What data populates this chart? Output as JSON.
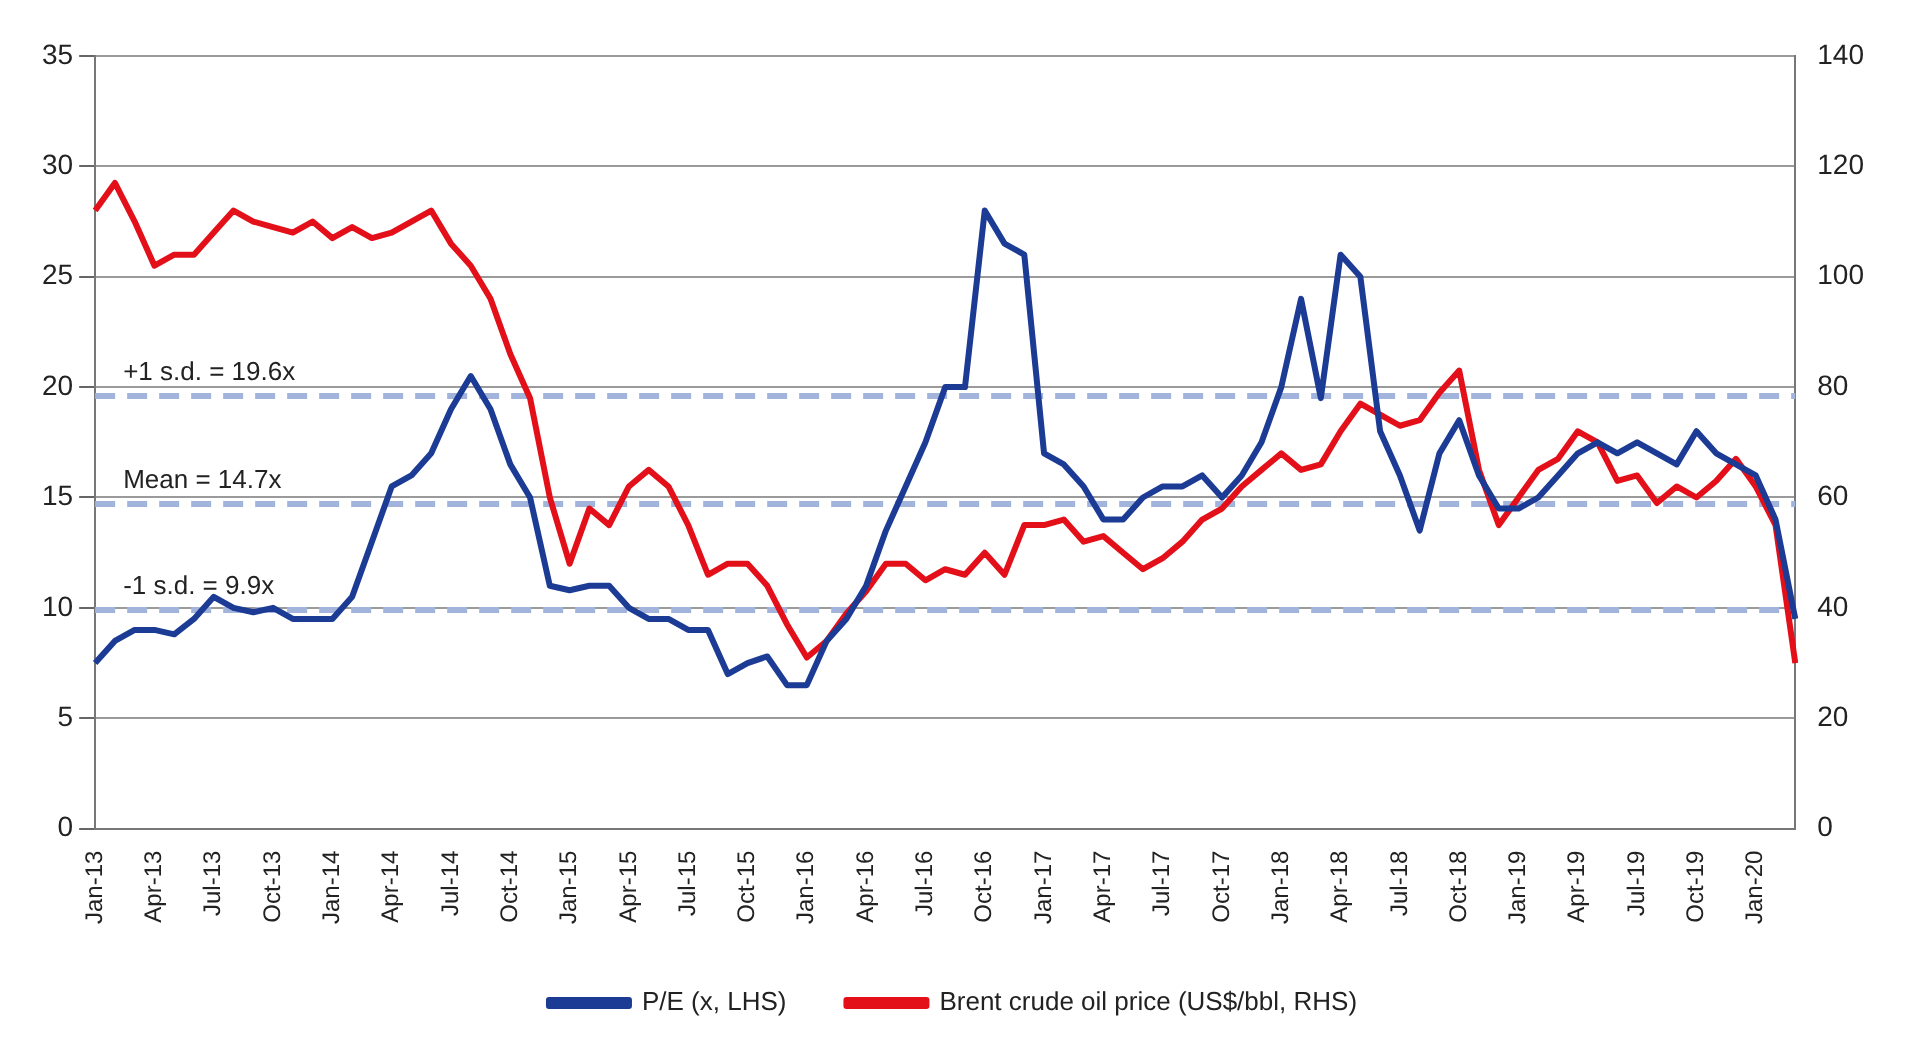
{
  "chart_data": {
    "type": "line",
    "categories": [
      "Jan-13",
      null,
      null,
      "Apr-13",
      null,
      null,
      "Jul-13",
      null,
      null,
      "Oct-13",
      null,
      null,
      "Jan-14",
      null,
      null,
      "Apr-14",
      null,
      null,
      "Jul-14",
      null,
      null,
      "Oct-14",
      null,
      null,
      "Jan-15",
      null,
      null,
      "Apr-15",
      null,
      null,
      "Jul-15",
      null,
      null,
      "Oct-15",
      null,
      null,
      "Jan-16",
      null,
      null,
      "Apr-16",
      null,
      null,
      "Jul-16",
      null,
      null,
      "Oct-16",
      null,
      null,
      "Jan-17",
      null,
      null,
      "Apr-17",
      null,
      null,
      "Jul-17",
      null,
      null,
      "Oct-17",
      null,
      null,
      "Jan-18",
      null,
      null,
      "Apr-18",
      null,
      null,
      "Jul-18",
      null,
      null,
      "Oct-18",
      null,
      null,
      "Jan-19",
      null,
      null,
      "Apr-19",
      null,
      null,
      "Jul-19",
      null,
      null,
      "Oct-19",
      null,
      null,
      "Jan-20",
      null,
      null
    ],
    "series": [
      {
        "name": "P/E (x, LHS)",
        "color": "#1b3b94",
        "values": [
          7.5,
          8.5,
          9,
          9,
          8.8,
          9.5,
          10.5,
          10,
          9.8,
          10,
          9.5,
          9.5,
          9.5,
          10.5,
          13,
          15.5,
          16,
          17,
          19,
          20.5,
          19,
          16.5,
          15,
          11,
          10.8,
          11,
          11,
          10,
          9.5,
          9.5,
          9,
          9,
          7,
          7.5,
          7.8,
          6.5,
          6.5,
          8.5,
          9.5,
          11,
          13.5,
          15.5,
          17.5,
          20,
          20,
          28,
          26.5,
          26,
          17,
          16.5,
          15.5,
          14,
          14,
          15,
          15.5,
          15.5,
          16,
          15,
          16,
          17.5,
          20,
          24,
          19.5,
          26,
          25,
          18,
          16,
          13.5,
          17,
          18.5,
          16,
          14.5,
          14.5,
          15,
          16,
          17,
          17.5,
          17,
          17.5,
          17,
          16.5,
          18,
          17,
          16.5,
          16,
          14,
          9.5
        ]
      },
      {
        "name": "Brent crude oil price (US$/bbl, RHS)",
        "color": "#e3101a",
        "axis": "y2",
        "values": [
          112,
          117,
          110,
          102,
          104,
          104,
          108,
          112,
          110,
          109,
          108,
          110,
          107,
          109,
          107,
          108,
          110,
          112,
          106,
          102,
          96,
          86,
          78,
          60,
          48,
          58,
          55,
          62,
          65,
          62,
          55,
          46,
          48,
          48,
          44,
          37,
          31,
          34,
          39,
          43,
          48,
          48,
          45,
          47,
          46,
          50,
          46,
          55,
          55,
          56,
          52,
          53,
          50,
          47,
          49,
          52,
          56,
          58,
          62,
          65,
          68,
          65,
          66,
          72,
          77,
          75,
          73,
          74,
          79,
          83,
          65,
          55,
          60,
          65,
          67,
          72,
          70,
          63,
          64,
          59,
          62,
          60,
          63,
          67,
          62,
          55,
          30
        ]
      }
    ],
    "ylim": [
      0,
      35
    ],
    "yticks": [
      0,
      5,
      10,
      15,
      20,
      25,
      30,
      35
    ],
    "y2lim": [
      0,
      140
    ],
    "y2ticks": [
      0,
      20,
      40,
      60,
      80,
      100,
      120,
      140
    ],
    "ref_lines": [
      {
        "axis": "y",
        "value": 19.6,
        "label": "+1 s.d. = 19.6x",
        "color": "#a3b4dc",
        "line_style": "dashed"
      },
      {
        "axis": "y",
        "value": 14.7,
        "label": "Mean = 14.7x",
        "color": "#a3b4dc",
        "line_style": "dashed"
      },
      {
        "axis": "y",
        "value": 9.9,
        "label": "-1 s.d. = 9.9x",
        "color": "#a3b4dc",
        "line_style": "dashed"
      }
    ],
    "grid": "y",
    "legend": "bottom",
    "marker": "none",
    "line_style": "solid"
  }
}
